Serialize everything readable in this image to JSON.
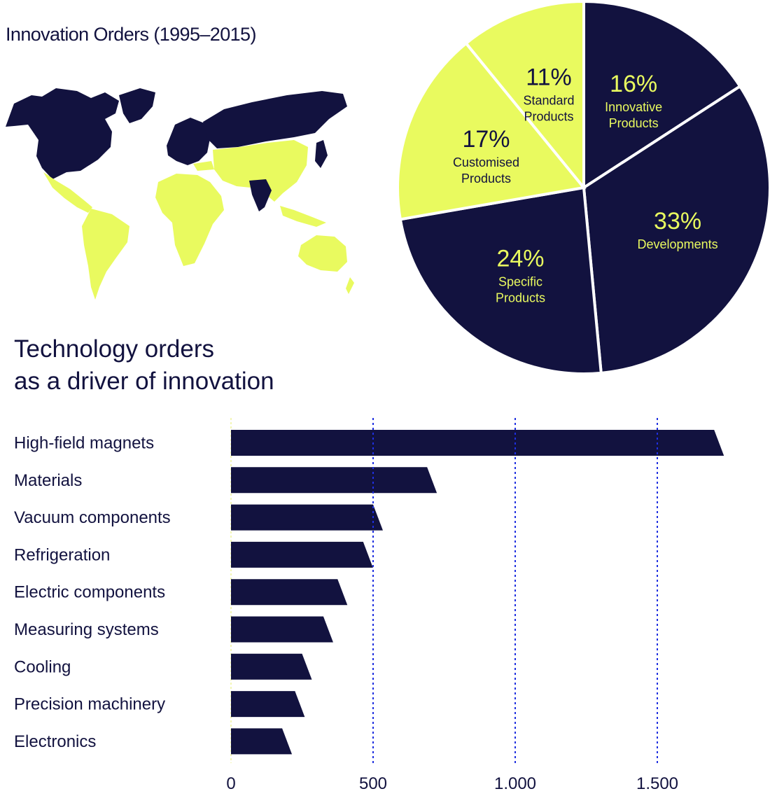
{
  "colors": {
    "navy": "#12123f",
    "yellow": "#e9fa5f",
    "grid_blue": "#1f2fe0",
    "zero_line": "#f3f6b6",
    "white": "#ffffff"
  },
  "map": {
    "title": "Innovation Orders (1995–2015)"
  },
  "bar_section": {
    "title_line1": "Technology orders",
    "title_line2": "as a driver of innovation"
  },
  "chart_data": [
    {
      "type": "pie",
      "title": "",
      "slices": [
        {
          "label_line1": "Innovative",
          "label_line2": "Products",
          "value": 16,
          "display": "16%",
          "color": "navy"
        },
        {
          "label_line1": "Developments",
          "label_line2": "",
          "value": 33,
          "display": "33%",
          "color": "navy"
        },
        {
          "label_line1": "Specific",
          "label_line2": "Products",
          "value": 24,
          "display": "24%",
          "color": "navy"
        },
        {
          "label_line1": "Customised",
          "label_line2": "Products",
          "value": 17,
          "display": "17%",
          "color": "yellow"
        },
        {
          "label_line1": "Standard",
          "label_line2": "Products",
          "value": 11,
          "display": "11%",
          "color": "yellow"
        }
      ]
    },
    {
      "type": "bar",
      "orientation": "horizontal",
      "title": "",
      "categories": [
        "High-field magnets",
        "Materials",
        "Vacuum components",
        "Refrigeration",
        "Electric components",
        "Measuring systems",
        "Cooling",
        "Precision machinery",
        "Electronics"
      ],
      "values": [
        1700,
        690,
        500,
        465,
        375,
        325,
        250,
        225,
        180
      ],
      "xlim": [
        0,
        1850
      ],
      "xticks": [
        0,
        500,
        1000,
        1500
      ],
      "xtick_labels": [
        "0",
        "500",
        "1.000",
        "1.500"
      ],
      "grid": "vertical dotted at 500, 1.000, 1.500"
    }
  ]
}
